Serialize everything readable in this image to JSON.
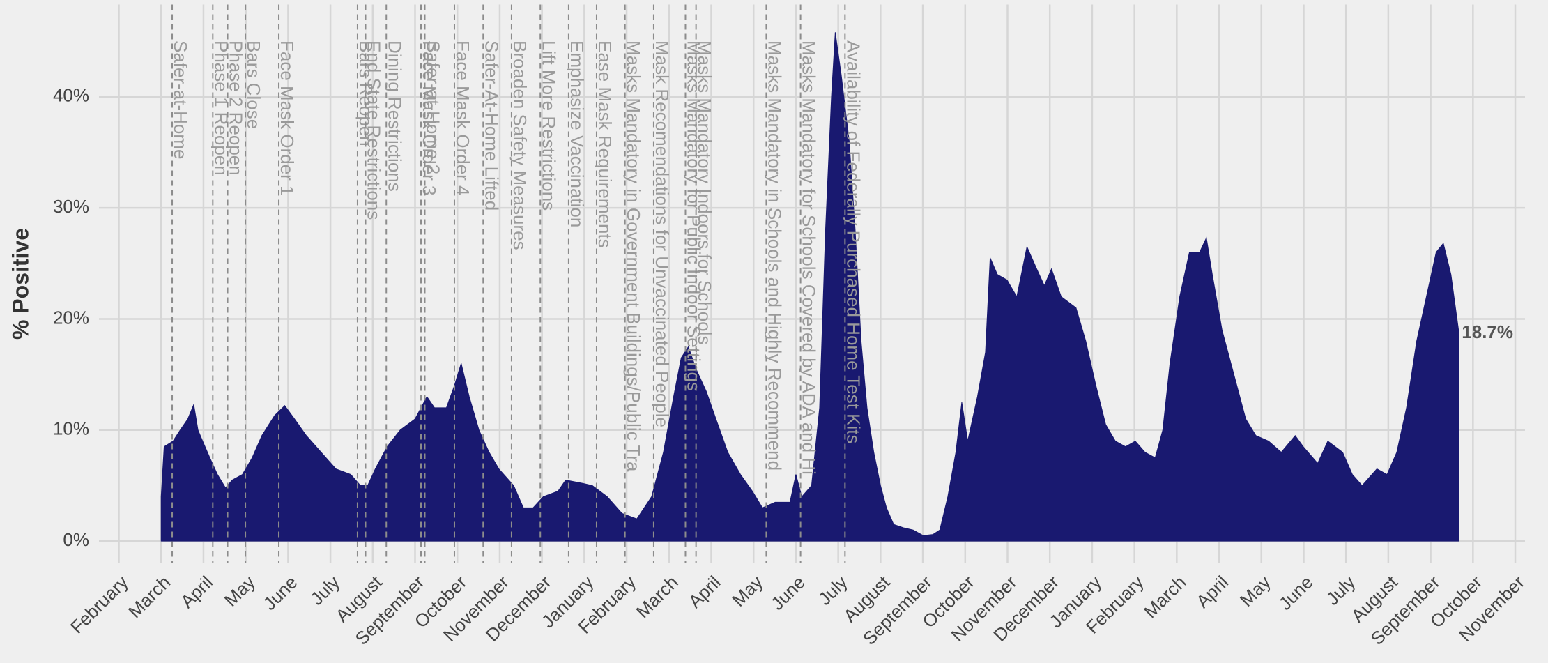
{
  "chart_data": {
    "type": "area",
    "y_label": "% Positive",
    "color": "#191970",
    "grid": true,
    "xlim": [
      -0.47,
      33.23
    ],
    "ylim": [
      -2,
      48.3
    ],
    "yticks": [
      {
        "value": 0,
        "label": "0%"
      },
      {
        "value": 10,
        "label": "10%"
      },
      {
        "value": 20,
        "label": "20%"
      },
      {
        "value": 30,
        "label": "30%"
      },
      {
        "value": 40,
        "label": "40%"
      }
    ],
    "xticks": [
      {
        "value": 0,
        "label": "February"
      },
      {
        "value": 1,
        "label": "March"
      },
      {
        "value": 2,
        "label": "April"
      },
      {
        "value": 3,
        "label": "May"
      },
      {
        "value": 4,
        "label": "June"
      },
      {
        "value": 5,
        "label": "July"
      },
      {
        "value": 6,
        "label": "August"
      },
      {
        "value": 7,
        "label": "September"
      },
      {
        "value": 8,
        "label": "October"
      },
      {
        "value": 9,
        "label": "November"
      },
      {
        "value": 10,
        "label": "December"
      },
      {
        "value": 11,
        "label": "January"
      },
      {
        "value": 12,
        "label": "February"
      },
      {
        "value": 13,
        "label": "March"
      },
      {
        "value": 14,
        "label": "April"
      },
      {
        "value": 15,
        "label": "May"
      },
      {
        "value": 16,
        "label": "June"
      },
      {
        "value": 17,
        "label": "July"
      },
      {
        "value": 18,
        "label": "August"
      },
      {
        "value": 19,
        "label": "September"
      },
      {
        "value": 20,
        "label": "October"
      },
      {
        "value": 21,
        "label": "November"
      },
      {
        "value": 22,
        "label": "December"
      },
      {
        "value": 23,
        "label": "January"
      },
      {
        "value": 24,
        "label": "February"
      },
      {
        "value": 25,
        "label": "March"
      },
      {
        "value": 26,
        "label": "April"
      },
      {
        "value": 27,
        "label": "May"
      },
      {
        "value": 28,
        "label": "June"
      },
      {
        "value": 29,
        "label": "July"
      },
      {
        "value": 30,
        "label": "August"
      },
      {
        "value": 31,
        "label": "September"
      },
      {
        "value": 32,
        "label": "October"
      },
      {
        "value": 33,
        "label": "November"
      }
    ],
    "x": [
      1.0,
      1.07,
      1.28,
      1.45,
      1.63,
      1.77,
      1.87,
      1.98,
      2.15,
      2.33,
      2.52,
      2.68,
      2.92,
      3.15,
      3.38,
      3.68,
      3.92,
      4.15,
      4.43,
      4.78,
      5.13,
      5.48,
      5.71,
      5.88,
      6.06,
      6.34,
      6.65,
      7.0,
      7.28,
      7.46,
      7.74,
      7.93,
      8.09,
      8.28,
      8.51,
      8.75,
      8.98,
      9.33,
      9.56,
      9.79,
      10.03,
      10.38,
      10.56,
      10.96,
      11.19,
      11.54,
      11.89,
      12.24,
      12.59,
      12.87,
      13.11,
      13.29,
      13.46,
      13.64,
      13.88,
      14.11,
      14.39,
      14.69,
      14.97,
      15.21,
      15.51,
      15.86,
      16.0,
      16.14,
      16.37,
      16.56,
      16.7,
      16.84,
      16.93,
      17.07,
      17.26,
      17.4,
      17.54,
      17.68,
      17.84,
      18.0,
      18.14,
      18.31,
      18.54,
      18.77,
      19.01,
      19.24,
      19.4,
      19.59,
      19.78,
      19.92,
      20.06,
      20.29,
      20.48,
      20.59,
      20.76,
      20.99,
      21.22,
      21.46,
      21.69,
      21.87,
      22.04,
      22.27,
      22.62,
      22.85,
      23.09,
      23.32,
      23.55,
      23.79,
      24.02,
      24.25,
      24.49,
      24.67,
      24.84,
      25.07,
      25.3,
      25.54,
      25.7,
      25.84,
      26.07,
      26.35,
      26.63,
      26.87,
      27.17,
      27.47,
      27.8,
      27.99,
      28.33,
      28.57,
      28.92,
      29.15,
      29.38,
      29.73,
      29.97,
      30.2,
      30.43,
      30.67,
      30.9,
      31.13,
      31.3,
      31.48,
      31.67
    ],
    "values": [
      4,
      8.5,
      9,
      10,
      11,
      12.3,
      10,
      9,
      7.5,
      6,
      4.8,
      5.5,
      6,
      7.5,
      9.5,
      11.3,
      12.2,
      11,
      9.5,
      8,
      6.5,
      6,
      5,
      5,
      6.5,
      8.5,
      10,
      11,
      13,
      12,
      12,
      14,
      16,
      13,
      10,
      8,
      6.5,
      5,
      3,
      3,
      4,
      4.5,
      5.5,
      5.2,
      5,
      4,
      2.5,
      2,
      4,
      8,
      13,
      16.5,
      17.5,
      15.5,
      13.5,
      11,
      8,
      6,
      4.5,
      3,
      3.5,
      3.5,
      6,
      4,
      5,
      12,
      28,
      40,
      45.8,
      42,
      36,
      28,
      18,
      12,
      8,
      5,
      3,
      1.5,
      1.2,
      1,
      0.5,
      0.6,
      1,
      4,
      8,
      12.5,
      9,
      13,
      17,
      25.5,
      24,
      23.5,
      22,
      26.5,
      24.5,
      23,
      24.5,
      22,
      21,
      18,
      14,
      10.5,
      9,
      8.5,
      9,
      8,
      7.5,
      10,
      16,
      22,
      26,
      26,
      27.3,
      24,
      19,
      15,
      11,
      9.5,
      9,
      8,
      9.5,
      8.5,
      7,
      9,
      8,
      6,
      5,
      6.5,
      6,
      8,
      12,
      18,
      22,
      26,
      26.8,
      24,
      18.7
    ],
    "value_labels": [
      null,
      null,
      null,
      null,
      null,
      null,
      null,
      null,
      null,
      null,
      null,
      null,
      null,
      null,
      null,
      null,
      null,
      null,
      null,
      null,
      null,
      null,
      null,
      null,
      null,
      null,
      null,
      null,
      null,
      null,
      null,
      null,
      null,
      null,
      null,
      null,
      null,
      null,
      null,
      null,
      null,
      null,
      null,
      null,
      null,
      null,
      null,
      null,
      null,
      null,
      null,
      null,
      null,
      null,
      null,
      null,
      null,
      null,
      null,
      null,
      null,
      null,
      null,
      null,
      null,
      null,
      null,
      null,
      null,
      null,
      null,
      null,
      null,
      null,
      null,
      null,
      null,
      null,
      null,
      null,
      null,
      null,
      null,
      null,
      null,
      null,
      null,
      null,
      null,
      null,
      null,
      null,
      null,
      null,
      null,
      null,
      null,
      null,
      null,
      null,
      null,
      null,
      null,
      null,
      null,
      null,
      null,
      null,
      null,
      null,
      null,
      null,
      null,
      null,
      null,
      null,
      null,
      null,
      null,
      null,
      null,
      null,
      null,
      null,
      null,
      null,
      null,
      null,
      null,
      null,
      null,
      null,
      null,
      null,
      null,
      null,
      "18.7%"
    ],
    "events": [
      {
        "x": 1.26,
        "label": "Safer-at-Home"
      },
      {
        "x": 2.22,
        "label": "Phase 1 Reopen"
      },
      {
        "x": 2.57,
        "label": "Phase 2 Reopen"
      },
      {
        "x": 2.99,
        "label": "Bars Close"
      },
      {
        "x": 3.78,
        "label": "Face Mask Order 1"
      },
      {
        "x": 5.64,
        "label": "Bars Reopen"
      },
      {
        "x": 5.83,
        "label": "End State Restrictions"
      },
      {
        "x": 6.32,
        "label": "Dining Restrictions"
      },
      {
        "x": 7.14,
        "label": "Face Mask Order 3"
      },
      {
        "x": 7.23,
        "label": "Safer-at-Home 2"
      },
      {
        "x": 7.93,
        "label": "Face Mask Order 4"
      },
      {
        "x": 8.61,
        "label": "Safer-At-Home Lifted"
      },
      {
        "x": 9.28,
        "label": "Broaden Safety Measures"
      },
      {
        "x": 9.96,
        "label": "Lift More Restrictions"
      },
      {
        "x": 10.63,
        "label": "Emphasize Vaccination"
      },
      {
        "x": 11.29,
        "label": "Ease Mask Requirements"
      },
      {
        "x": 11.96,
        "label": "Masks Mandatory in Government Buildings/Public Tra"
      },
      {
        "x": 12.64,
        "label": "Mask Recomendations for Unvaccinated People"
      },
      {
        "x": 13.39,
        "label": "Masks Mandatory for Public Indoor Settings"
      },
      {
        "x": 13.64,
        "label": "Masks Mandatory Indoors for Schools"
      },
      {
        "x": 15.3,
        "label": "Masks Mandatory in Schools and Highly Recommend"
      },
      {
        "x": 16.11,
        "label": "Masks Mandatory for Schools Covered by ADA and Hi"
      },
      {
        "x": 17.16,
        "label": "Availability of Federally Purchased Home Test Kits"
      }
    ]
  }
}
